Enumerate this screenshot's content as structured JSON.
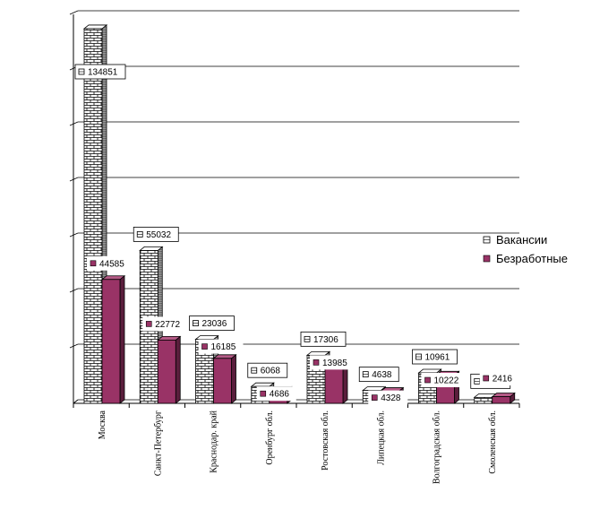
{
  "chart_data": {
    "type": "bar",
    "title": "",
    "xlabel": "",
    "ylabel": "",
    "ylim": [
      0,
      140000
    ],
    "grid": true,
    "legend": "right",
    "categories": [
      "Москва",
      "Санкт-Петербург",
      "Краснодар. край",
      "Оренбург обл.",
      "Ростовская обл.",
      "Липецкая обл.",
      "Волгоградская обл.",
      "Смоленская обл."
    ],
    "series": [
      {
        "name": "Вакансии",
        "values": [
          134851,
          55032,
          23036,
          6068,
          17306,
          4638,
          10961,
          2142
        ],
        "labels": [
          "134851",
          "55032",
          "23036",
          "6068",
          "17306",
          "4638",
          "10961",
          "2142"
        ],
        "color": "#ffffff"
      },
      {
        "name": "Безработные",
        "values": [
          44585,
          22772,
          16185,
          4686,
          13985,
          4328,
          10222,
          2416
        ],
        "labels": [
          "44585",
          "22772",
          "16185",
          "4686",
          "13985",
          "4328",
          "10222",
          "2416"
        ],
        "color": "#993366"
      }
    ]
  }
}
